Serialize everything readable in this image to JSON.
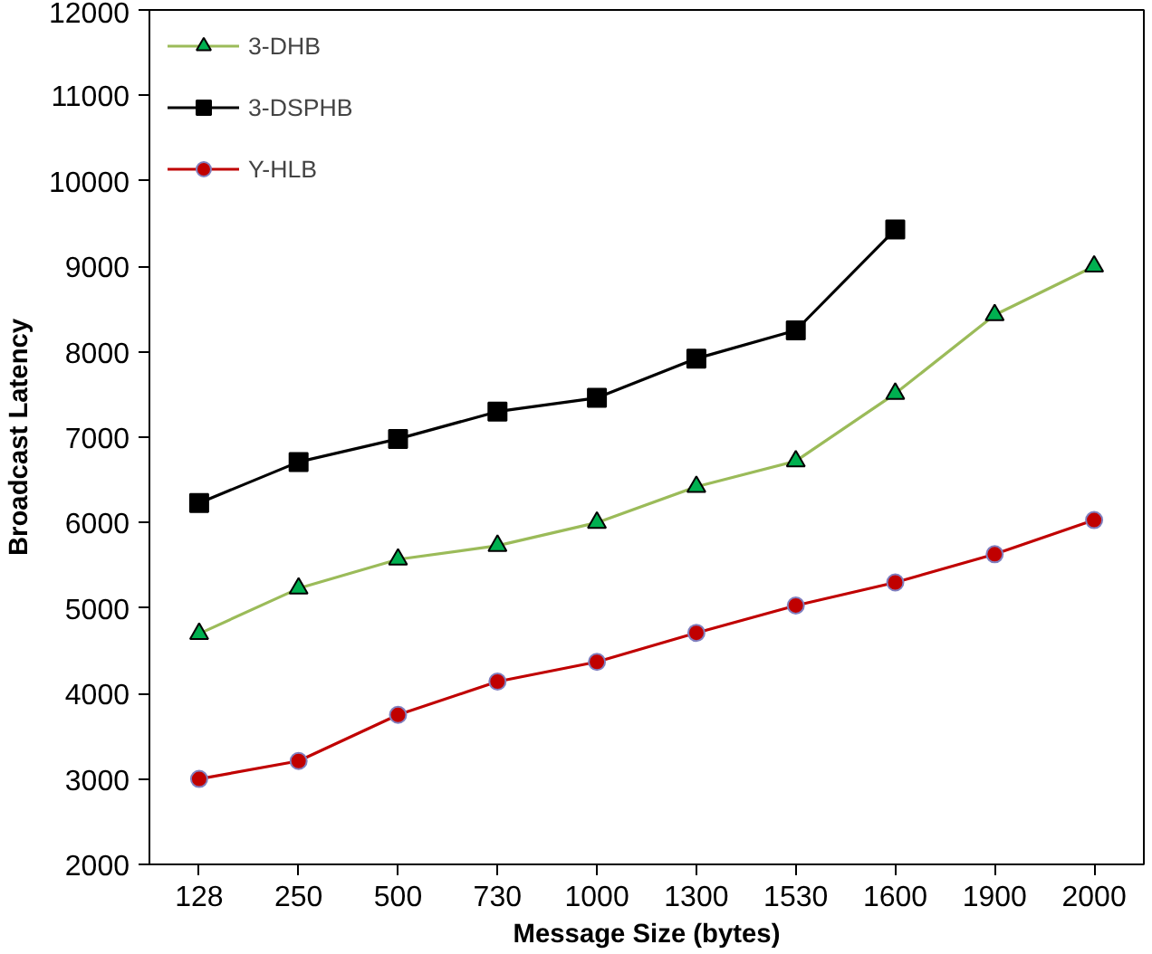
{
  "chart_data": {
    "type": "line",
    "xlabel": "Message Size (bytes)",
    "ylabel": "Broadcast Latency",
    "categories": [
      "128",
      "250",
      "500",
      "730",
      "1000",
      "1300",
      "1530",
      "1600",
      "1900",
      "2000"
    ],
    "series": [
      {
        "name": "3-DHB",
        "color": "#9bbb59",
        "marker": "triangle",
        "values": [
          4700,
          5230,
          5570,
          5730,
          6000,
          6420,
          6720,
          7510,
          8430,
          9000
        ]
      },
      {
        "name": "3-DSPHB",
        "color": "#000000",
        "marker": "square",
        "values": [
          6230,
          6710,
          6980,
          7300,
          7460,
          7920,
          8250,
          9430,
          null,
          null
        ]
      },
      {
        "name": "Y-HLB",
        "color": "#c00000",
        "marker": "circle",
        "values": [
          3000,
          3210,
          3750,
          4140,
          4370,
          4710,
          5030,
          5300,
          5630,
          6030
        ]
      }
    ],
    "ylim": [
      2000,
      12000
    ],
    "yticks": [
      2000,
      3000,
      4000,
      5000,
      6000,
      7000,
      8000,
      9000,
      10000,
      11000,
      12000
    ],
    "grid": false,
    "legend": "top left"
  }
}
